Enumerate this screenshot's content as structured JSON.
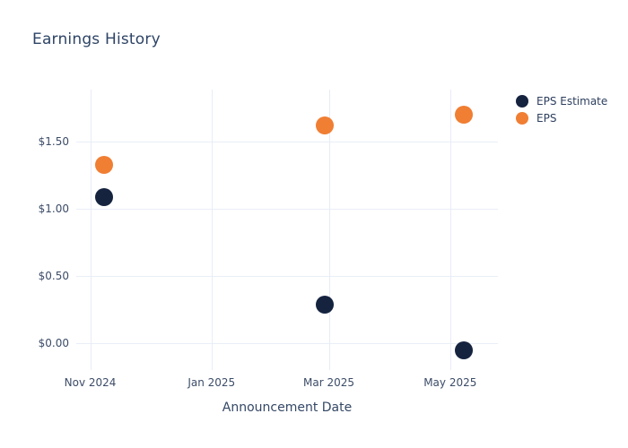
{
  "chart_data": {
    "type": "scatter",
    "title": "Earnings History",
    "xlabel": "Announcement Date",
    "ylabel": "",
    "grid": true,
    "legend_position": "right-outside-top",
    "x_domain": [
      "2024-10-25",
      "2025-05-25"
    ],
    "ylim": [
      -0.2,
      1.89
    ],
    "x_ticks": [
      {
        "date": "2024-11-01",
        "label": "Nov 2024"
      },
      {
        "date": "2025-01-01",
        "label": "Jan 2025"
      },
      {
        "date": "2025-03-01",
        "label": "Mar 2025"
      },
      {
        "date": "2025-05-01",
        "label": "May 2025"
      }
    ],
    "y_ticks": [
      {
        "value": 1.5,
        "label": "$1.50"
      },
      {
        "value": 1.0,
        "label": "$1.00"
      },
      {
        "value": 0.5,
        "label": "$0.50"
      },
      {
        "value": 0.0,
        "label": "$0.00"
      }
    ],
    "series": [
      {
        "name": "EPS Estimate",
        "color": "#15233f",
        "points": [
          {
            "date": "2024-11-08",
            "value": 1.09
          },
          {
            "date": "2025-02-27",
            "value": 0.29
          },
          {
            "date": "2025-05-08",
            "value": -0.05
          }
        ]
      },
      {
        "name": "EPS",
        "color": "#f07e33",
        "points": [
          {
            "date": "2024-11-08",
            "value": 1.33
          },
          {
            "date": "2025-02-27",
            "value": 1.62
          },
          {
            "date": "2025-05-08",
            "value": 1.7
          }
        ]
      }
    ]
  }
}
